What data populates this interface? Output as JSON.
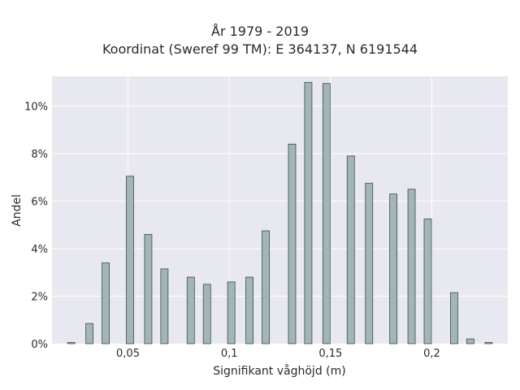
{
  "chart_data": {
    "type": "bar",
    "title_line1": "År 1979 - 2019",
    "title_line2": "Koordinat (Sweref 99 TM): E 364137, N 6191544",
    "xlabel": "Signifikant våghöjd (m)",
    "ylabel": "Andel",
    "xlim": [
      0.0125,
      0.2375
    ],
    "ylim": [
      0,
      11.25
    ],
    "x_ticks": [
      {
        "value": 0.05,
        "label": "0,05"
      },
      {
        "value": 0.1,
        "label": "0,1"
      },
      {
        "value": 0.15,
        "label": "0,15"
      },
      {
        "value": 0.2,
        "label": "0,2"
      }
    ],
    "y_ticks": [
      {
        "value": 0,
        "label": "0%"
      },
      {
        "value": 2,
        "label": "2%"
      },
      {
        "value": 4,
        "label": "4%"
      },
      {
        "value": 6,
        "label": "6%"
      },
      {
        "value": 8,
        "label": "8%"
      },
      {
        "value": 10,
        "label": "10%"
      }
    ],
    "grid": true,
    "bar_color": "#a2b6b8",
    "bar_edge_color": "#3c4a4a",
    "background_color": "#e8e8f0",
    "x": [
      0.022,
      0.031,
      0.039,
      0.051,
      0.06,
      0.068,
      0.081,
      0.089,
      0.101,
      0.11,
      0.118,
      0.131,
      0.139,
      0.148,
      0.16,
      0.169,
      0.181,
      0.19,
      0.198,
      0.211,
      0.219,
      0.228
    ],
    "values": [
      0.05,
      0.85,
      3.4,
      7.05,
      4.6,
      3.15,
      2.8,
      2.5,
      2.6,
      2.8,
      4.75,
      8.4,
      11.0,
      10.95,
      7.9,
      6.75,
      6.3,
      6.5,
      5.25,
      2.15,
      0.2,
      0.05
    ]
  }
}
